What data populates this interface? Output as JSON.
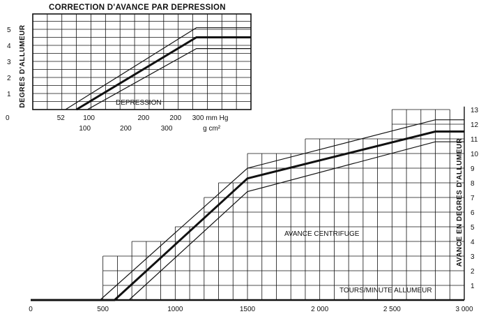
{
  "chart_data": [
    {
      "type": "line",
      "title": "CORRECTION D'AVANCE PAR DEPRESSION",
      "ylabel": "DEGRES D'ALLUMEUR",
      "annotation": "DEPRESSION",
      "unit_labels": [
        "mm Hg",
        "g cm²"
      ],
      "ylim": [
        0,
        5
      ],
      "y_ticks": [
        "1",
        "2",
        "3",
        "4",
        "5"
      ],
      "x_ticks_mmHg": [
        "52",
        "100",
        "200",
        "300 mm Hg"
      ],
      "x_ticks_gcm2": [
        "100",
        "200",
        "300",
        "g cm²"
      ],
      "extra_ticks": [
        "200",
        "0"
      ],
      "x_unit": "mm Hg",
      "series": [
        {
          "values": [
            [
              60,
              0
            ],
            [
              300,
              5.1
            ],
            [
              400,
              5.1
            ]
          ]
        },
        {
          "values": [
            [
              80,
              0
            ],
            [
              300,
              4.5
            ],
            [
              400,
              4.5
            ]
          ]
        },
        {
          "values": [
            [
              100,
              0
            ],
            [
              300,
              3.8
            ],
            [
              400,
              3.8
            ]
          ]
        }
      ],
      "xlim": [
        0,
        400
      ],
      "grid": true
    },
    {
      "type": "line",
      "ylabel": "AVANCE EN DEGRES D'ALLUMEUR",
      "annotation": "AVANCE CENTRIFUGE",
      "xlabel": "TOURS/MINUTE ALLUMEUR",
      "x_ticks": [
        "0",
        "500",
        "1000",
        "1500",
        "2 000",
        "2 500",
        "3 000"
      ],
      "y_ticks": [
        "1",
        "2",
        "3",
        "4",
        "5",
        "6",
        "7",
        "8",
        "9",
        "10",
        "11",
        "12",
        "13"
      ],
      "xlim": [
        0,
        3000
      ],
      "ylim": [
        0,
        13
      ],
      "series": [
        {
          "values": [
            [
              0,
              0
            ],
            [
              480,
              0
            ],
            [
              1500,
              9
            ],
            [
              2800,
              12.3
            ],
            [
              3000,
              12.3
            ]
          ]
        },
        {
          "values": [
            [
              0,
              0
            ],
            [
              580,
              0
            ],
            [
              1500,
              8.3
            ],
            [
              2800,
              11.5
            ],
            [
              3000,
              11.5
            ]
          ]
        },
        {
          "values": [
            [
              0,
              0
            ],
            [
              680,
              0
            ],
            [
              1500,
              7.4
            ],
            [
              2800,
              10.8
            ],
            [
              3000,
              10.8
            ]
          ]
        }
      ],
      "grid": "stepped",
      "y_axis_position": "right"
    }
  ],
  "colors": {
    "ink": "#111111",
    "paper": "#ffffff"
  }
}
